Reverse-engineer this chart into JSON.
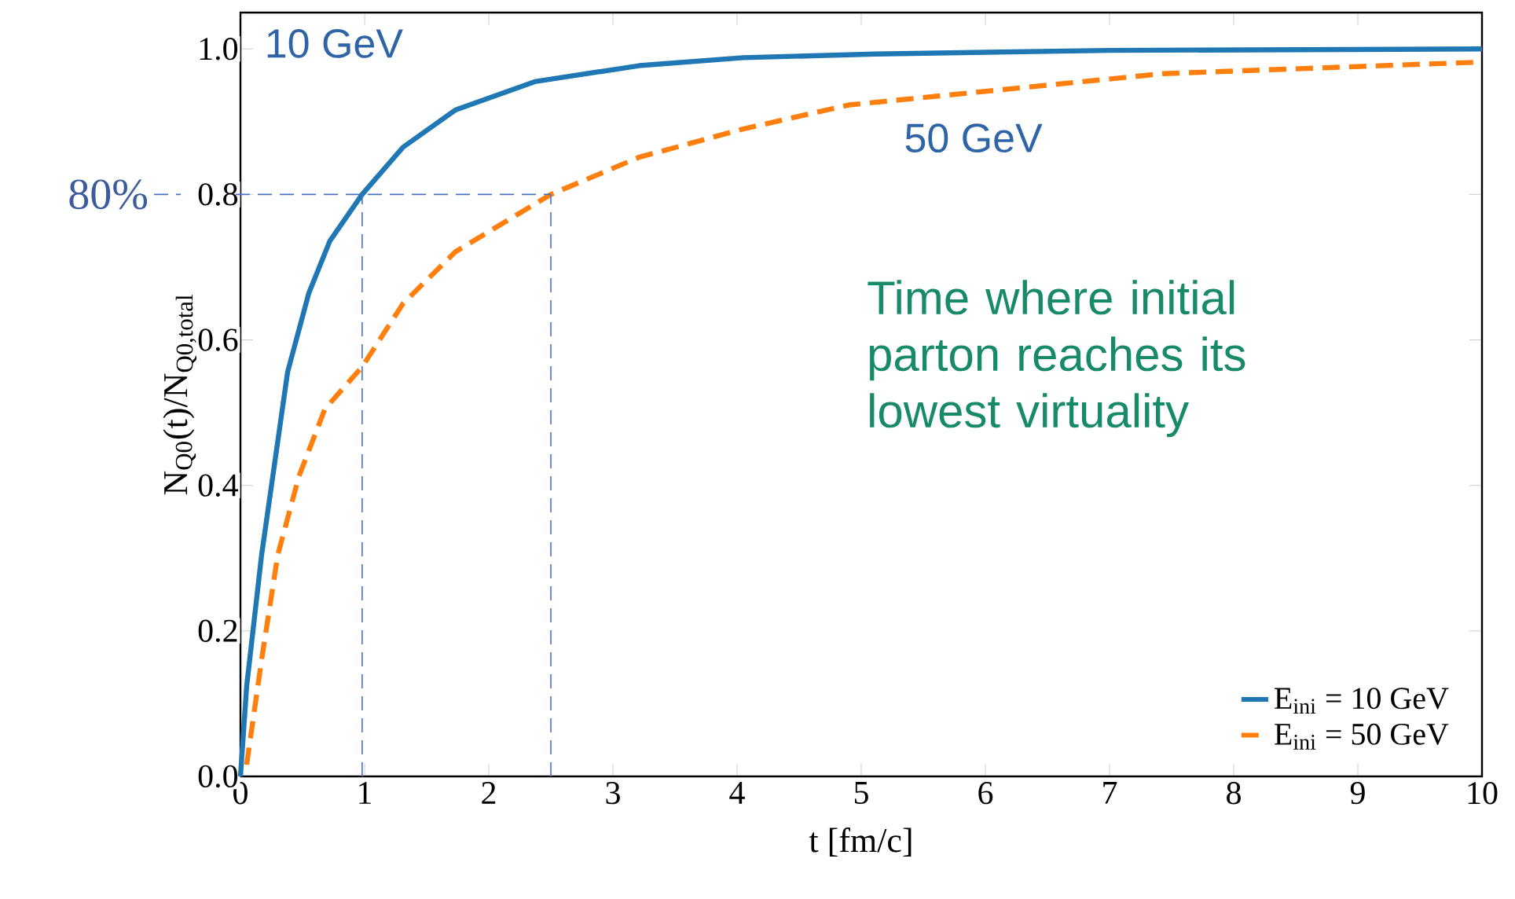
{
  "chart_data": {
    "type": "line",
    "xlabel": "t [fm/c]",
    "ylabel": "N$_{Q0}$(t)/N$_{Q0,total}$",
    "xlim": [
      0,
      10
    ],
    "ylim": [
      0,
      1.05
    ],
    "xticks": [
      0,
      1,
      2,
      3,
      4,
      5,
      6,
      7,
      8,
      9,
      10
    ],
    "yticks": [
      {
        "value": 0,
        "label": "0.0"
      },
      {
        "value": 0.2,
        "label": "0.2"
      },
      {
        "value": 0.4,
        "label": "0.4"
      },
      {
        "value": 0.6,
        "label": "0.6"
      },
      {
        "value": 0.8,
        "label": "0.8"
      },
      {
        "value": 1.0,
        "label": "1.0"
      }
    ],
    "series": [
      {
        "name": "E$_{ini}$ = 10 GeV",
        "color": "#1f77b4",
        "line_style": "solid",
        "x": [
          0,
          0.05,
          0.17,
          0.26,
          0.38,
          0.55,
          0.72,
          0.98,
          1.31,
          1.73,
          2.37,
          3.21,
          4.05,
          5.11,
          7,
          10
        ],
        "values": [
          0,
          0.124,
          0.304,
          0.412,
          0.556,
          0.664,
          0.736,
          0.8,
          0.865,
          0.916,
          0.955,
          0.977,
          0.988,
          0.993,
          0.998,
          1.0
        ]
      },
      {
        "name": "E$_{ini}$ = 50 GeV",
        "color": "#ff7f0e",
        "line_style": "dashed",
        "x": [
          0.05,
          0.17,
          0.3,
          0.47,
          0.68,
          0.98,
          1.31,
          1.73,
          2.5,
          3.21,
          4.05,
          4.9,
          7.43,
          10
        ],
        "values": [
          0.016,
          0.16,
          0.304,
          0.412,
          0.505,
          0.563,
          0.65,
          0.721,
          0.8,
          0.851,
          0.89,
          0.923,
          0.966,
          0.982
        ]
      }
    ],
    "ref_lines": [
      {
        "axis": "y",
        "value": 0.8,
        "label": "80%",
        "color": "#4a72c4",
        "line_style": "dashed"
      },
      {
        "axis": "x",
        "value": 0.98,
        "color": "#4a72c4",
        "line_style": "dashed"
      },
      {
        "axis": "x",
        "value": 2.5,
        "color": "#4a72c4",
        "line_style": "dashed"
      }
    ],
    "annotations": [
      "10 GeV",
      "50 GeV",
      "Time where initial parton reaches its lowest virtuality"
    ],
    "legend": "bottom right",
    "grid": false
  }
}
